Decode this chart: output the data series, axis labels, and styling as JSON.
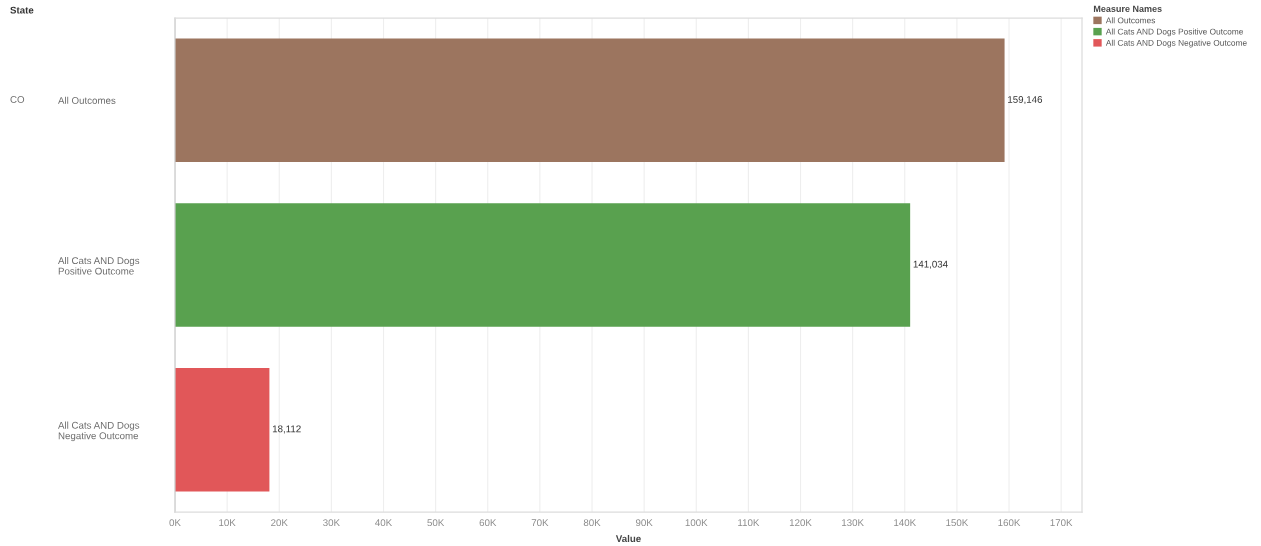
{
  "chart_data": {
    "type": "bar",
    "orientation": "horizontal",
    "ylabel": "State",
    "xlabel": "Value",
    "legend_title": "Measure Names",
    "annotations": [
      "CO"
    ],
    "categories": [
      "All Outcomes",
      "All Cats AND Dogs Positive Outcome",
      "All Cats AND Dogs Negative Outcome"
    ],
    "series": [
      {
        "name": "All Outcomes",
        "color": "#9c755f",
        "values": [
          159146,
          null,
          null
        ],
        "value_labels": [
          "159,146",
          null,
          null
        ]
      },
      {
        "name": "All Cats AND Dogs Positive Outcome",
        "color": "#59a14f",
        "values": [
          null,
          141034,
          null
        ],
        "value_labels": [
          null,
          "141,034",
          null
        ]
      },
      {
        "name": "All Cats AND Dogs Negative Outcome",
        "color": "#e15759",
        "values": [
          null,
          null,
          18112
        ],
        "value_labels": [
          null,
          null,
          "18,112"
        ]
      }
    ],
    "xlim": [
      0,
      174000
    ],
    "xticks": [
      {
        "value": 0,
        "label": "0K"
      },
      {
        "value": 10000,
        "label": "10K"
      },
      {
        "value": 20000,
        "label": "20K"
      },
      {
        "value": 30000,
        "label": "30K"
      },
      {
        "value": 40000,
        "label": "40K"
      },
      {
        "value": 50000,
        "label": "50K"
      },
      {
        "value": 60000,
        "label": "60K"
      },
      {
        "value": 70000,
        "label": "70K"
      },
      {
        "value": 80000,
        "label": "80K"
      },
      {
        "value": 90000,
        "label": "90K"
      },
      {
        "value": 100000,
        "label": "100K"
      },
      {
        "value": 110000,
        "label": "110K"
      },
      {
        "value": 120000,
        "label": "120K"
      },
      {
        "value": 130000,
        "label": "130K"
      },
      {
        "value": 140000,
        "label": "140K"
      },
      {
        "value": 150000,
        "label": "150K"
      },
      {
        "value": 160000,
        "label": "160K"
      },
      {
        "value": 170000,
        "label": "170K"
      }
    ],
    "grid": "x",
    "legend": "top right"
  }
}
